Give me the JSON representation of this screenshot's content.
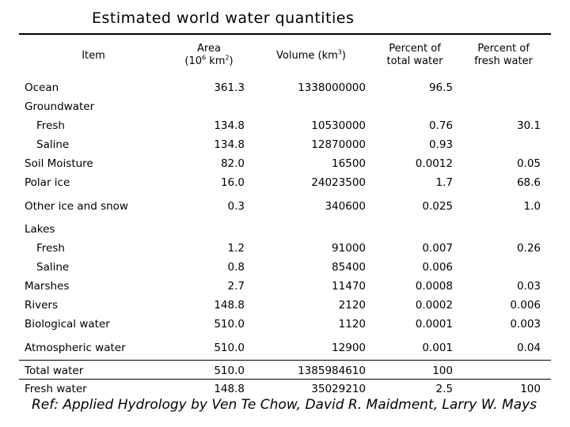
{
  "title": "Estimated world water quantities",
  "headers": {
    "item": "Item",
    "area_line1": "Area",
    "area_prefix": "(10",
    "area_exp": "6",
    "area_unit": " km",
    "area_unit_exp": "2",
    "area_close": ")",
    "volume_text": "Volume (km",
    "volume_exp": "3",
    "volume_close": ")",
    "pct_total_line1": "Percent of",
    "pct_total_line2": "total water",
    "pct_fresh_line1": "Percent of",
    "pct_fresh_line2": "fresh water"
  },
  "rows": [
    {
      "label": "Ocean",
      "area": "361.3",
      "volume": "1338000000",
      "pct_total": "96.5",
      "pct_fresh": ""
    },
    {
      "label": "Groundwater",
      "area": "",
      "volume": "",
      "pct_total": "",
      "pct_fresh": ""
    },
    {
      "label": "Fresh",
      "area": "134.8",
      "volume": "10530000",
      "pct_total": "0.76",
      "pct_fresh": "30.1"
    },
    {
      "label": "Saline",
      "area": "134.8",
      "volume": "12870000",
      "pct_total": "0.93",
      "pct_fresh": ""
    },
    {
      "label": "Soil Moisture",
      "area": "82.0",
      "volume": "16500",
      "pct_total": "0.0012",
      "pct_fresh": "0.05"
    },
    {
      "label": "Polar ice",
      "area": "16.0",
      "volume": "24023500",
      "pct_total": "1.7",
      "pct_fresh": "68.6"
    },
    {
      "label": "Other ice and snow",
      "area": "0.3",
      "volume": "340600",
      "pct_total": "0.025",
      "pct_fresh": "1.0"
    },
    {
      "label": "Lakes",
      "area": "",
      "volume": "",
      "pct_total": "",
      "pct_fresh": ""
    },
    {
      "label": "Fresh",
      "area": "1.2",
      "volume": "91000",
      "pct_total": "0.007",
      "pct_fresh": "0.26"
    },
    {
      "label": "Saline",
      "area": "0.8",
      "volume": "85400",
      "pct_total": "0.006",
      "pct_fresh": ""
    },
    {
      "label": "Marshes",
      "area": "2.7",
      "volume": "11470",
      "pct_total": "0.0008",
      "pct_fresh": "0.03"
    },
    {
      "label": "Rivers",
      "area": "148.8",
      "volume": "2120",
      "pct_total": "0.0002",
      "pct_fresh": "0.006"
    },
    {
      "label": "Biological water",
      "area": "510.0",
      "volume": "1120",
      "pct_total": "0.0001",
      "pct_fresh": "0.003"
    },
    {
      "label": "Atmospheric water",
      "area": "510.0",
      "volume": "12900",
      "pct_total": "0.001",
      "pct_fresh": "0.04"
    },
    {
      "label": "Total water",
      "area": "510.0",
      "volume": "1385984610",
      "pct_total": "100",
      "pct_fresh": ""
    },
    {
      "label": "Fresh water",
      "area": "148.8",
      "volume": "35029210",
      "pct_total": "2.5",
      "pct_fresh": "100"
    }
  ],
  "reference": "Ref: Applied Hydrology by Ven Te Chow, David R. Maidment, Larry W. Mays"
}
